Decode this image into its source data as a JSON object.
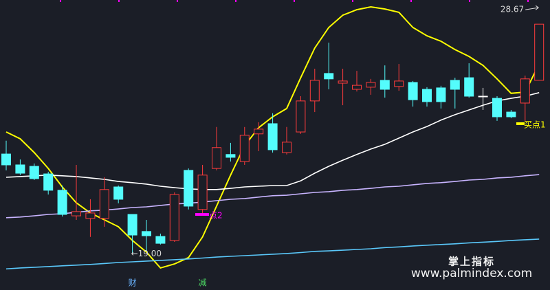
{
  "chart_data": {
    "type": "candlestick",
    "categories": [
      null,
      null,
      null,
      null,
      null,
      null,
      null,
      null,
      null,
      "财",
      null,
      null,
      null,
      null,
      "减",
      null,
      null,
      null,
      null,
      null,
      null,
      null,
      null,
      null,
      null,
      null,
      null,
      null,
      null,
      null,
      null,
      null,
      null,
      null,
      null,
      null,
      null,
      null,
      null
    ],
    "open": [
      23.19,
      22.73,
      22.67,
      22.35,
      21.66,
      20.58,
      20.47,
      20.47,
      21.8,
      20.64,
      19.92,
      19.71,
      19.54,
      22.5,
      20.85,
      22.58,
      23.17,
      22.87,
      24.04,
      24.47,
      23.25,
      24.12,
      25.43,
      26.59,
      26.18,
      25.92,
      26.01,
      26.3,
      26.04,
      26.21,
      25.92,
      25.98,
      26.3,
      26.41,
      25.63,
      25.54,
      24.96,
      25.34,
      26.3
    ],
    "high": [
      23.75,
      22.96,
      22.79,
      22.44,
      21.86,
      22.73,
      21.28,
      22.21,
      21.86,
      20.64,
      20.41,
      19.83,
      21.57,
      22.58,
      22.73,
      24.33,
      23.66,
      24.33,
      24.53,
      24.91,
      24.33,
      25.63,
      26.79,
      27.89,
      26.79,
      26.7,
      26.36,
      26.93,
      26.99,
      26.27,
      26.01,
      26.07,
      26.41,
      27.02,
      25.98,
      25.63,
      25.05,
      26.5,
      28.67
    ],
    "low": [
      22.5,
      22.3,
      22.09,
      21.48,
      20.55,
      20.41,
      19.69,
      20.12,
      21.11,
      19.0,
      19.11,
      19.37,
      19.48,
      20.85,
      20.7,
      22.5,
      22.87,
      22.73,
      23.31,
      23.25,
      23.17,
      24.04,
      24.96,
      25.92,
      25.25,
      25.83,
      25.69,
      25.57,
      25.86,
      25.19,
      25.19,
      25.11,
      25.11,
      25.57,
      25.05,
      24.59,
      24.7,
      24.56,
      26.3
    ],
    "close": [
      22.73,
      22.38,
      22.15,
      21.66,
      20.64,
      20.76,
      20.7,
      21.69,
      21.28,
      19.77,
      19.74,
      19.42,
      21.48,
      20.99,
      22.3,
      23.46,
      23.05,
      23.98,
      24.24,
      23.37,
      23.69,
      25.43,
      26.3,
      26.36,
      26.27,
      26.09,
      26.21,
      25.92,
      26.27,
      25.48,
      25.4,
      25.4,
      25.92,
      25.63,
      25.63,
      24.76,
      24.76,
      26.36,
      28.67
    ],
    "up_color": "#ff3c3c",
    "down_color": "#54fcfc",
    "flat_color": "#ffffff",
    "series": [
      {
        "color": "#ffff00",
        "values": [
          24.12,
          23.83,
          23.25,
          22.58,
          21.8,
          21.13,
          20.7,
          20.41,
          20.12,
          19.54,
          19.05,
          18.38,
          18.55,
          18.82,
          19.69,
          20.99,
          22.3,
          23.54,
          24.3,
          24.76,
          25.11,
          26.41,
          27.66,
          28.53,
          29.05,
          29.28,
          29.4,
          29.31,
          29.17,
          28.53,
          28.18,
          27.95,
          27.6,
          27.31,
          26.93,
          26.36,
          25.75,
          25.8,
          26.99
        ]
      },
      {
        "color": "#ffffff",
        "values": [
          22.21,
          22.24,
          22.27,
          22.3,
          22.27,
          22.24,
          22.18,
          22.12,
          22.03,
          21.98,
          21.92,
          21.83,
          21.77,
          21.72,
          21.69,
          21.69,
          21.74,
          21.8,
          21.83,
          21.86,
          21.86,
          22.06,
          22.38,
          22.67,
          22.93,
          23.17,
          23.4,
          23.6,
          23.86,
          24.12,
          24.35,
          24.62,
          24.85,
          25.05,
          25.25,
          25.43,
          25.54,
          25.63,
          25.78
        ]
      },
      {
        "color": "#c8b4ff",
        "values": [
          20.5,
          20.53,
          20.58,
          20.64,
          20.67,
          20.73,
          20.79,
          20.82,
          20.87,
          20.93,
          20.96,
          21.02,
          21.08,
          21.11,
          21.16,
          21.22,
          21.28,
          21.31,
          21.37,
          21.43,
          21.45,
          21.51,
          21.57,
          21.6,
          21.66,
          21.69,
          21.74,
          21.8,
          21.83,
          21.89,
          21.95,
          21.98,
          22.03,
          22.09,
          22.12,
          22.18,
          22.21,
          22.27,
          22.32
        ]
      },
      {
        "color": "#5ac8fa",
        "values": [
          18.34,
          18.38,
          18.41,
          18.44,
          18.47,
          18.5,
          18.53,
          18.57,
          18.61,
          18.64,
          18.67,
          18.7,
          18.73,
          18.76,
          18.8,
          18.84,
          18.87,
          18.9,
          18.93,
          18.96,
          18.99,
          19.03,
          19.08,
          19.1,
          19.13,
          19.16,
          19.19,
          19.24,
          19.27,
          19.31,
          19.34,
          19.37,
          19.4,
          19.44,
          19.47,
          19.5,
          19.54,
          19.57,
          19.6
        ]
      }
    ],
    "category_colors": [
      "#6ab4ff",
      "#4cd964"
    ],
    "ylim": [
      17.45,
      29.69
    ],
    "max_label": "28.67",
    "min_label": "←19.00",
    "signals": [
      {
        "label": "买点1",
        "color": "#ffff00"
      },
      {
        "label": "点2",
        "color": "#ff00ff"
      }
    ]
  },
  "watermark": {
    "title": "掌上指标",
    "url": "www.palmindex.com"
  }
}
